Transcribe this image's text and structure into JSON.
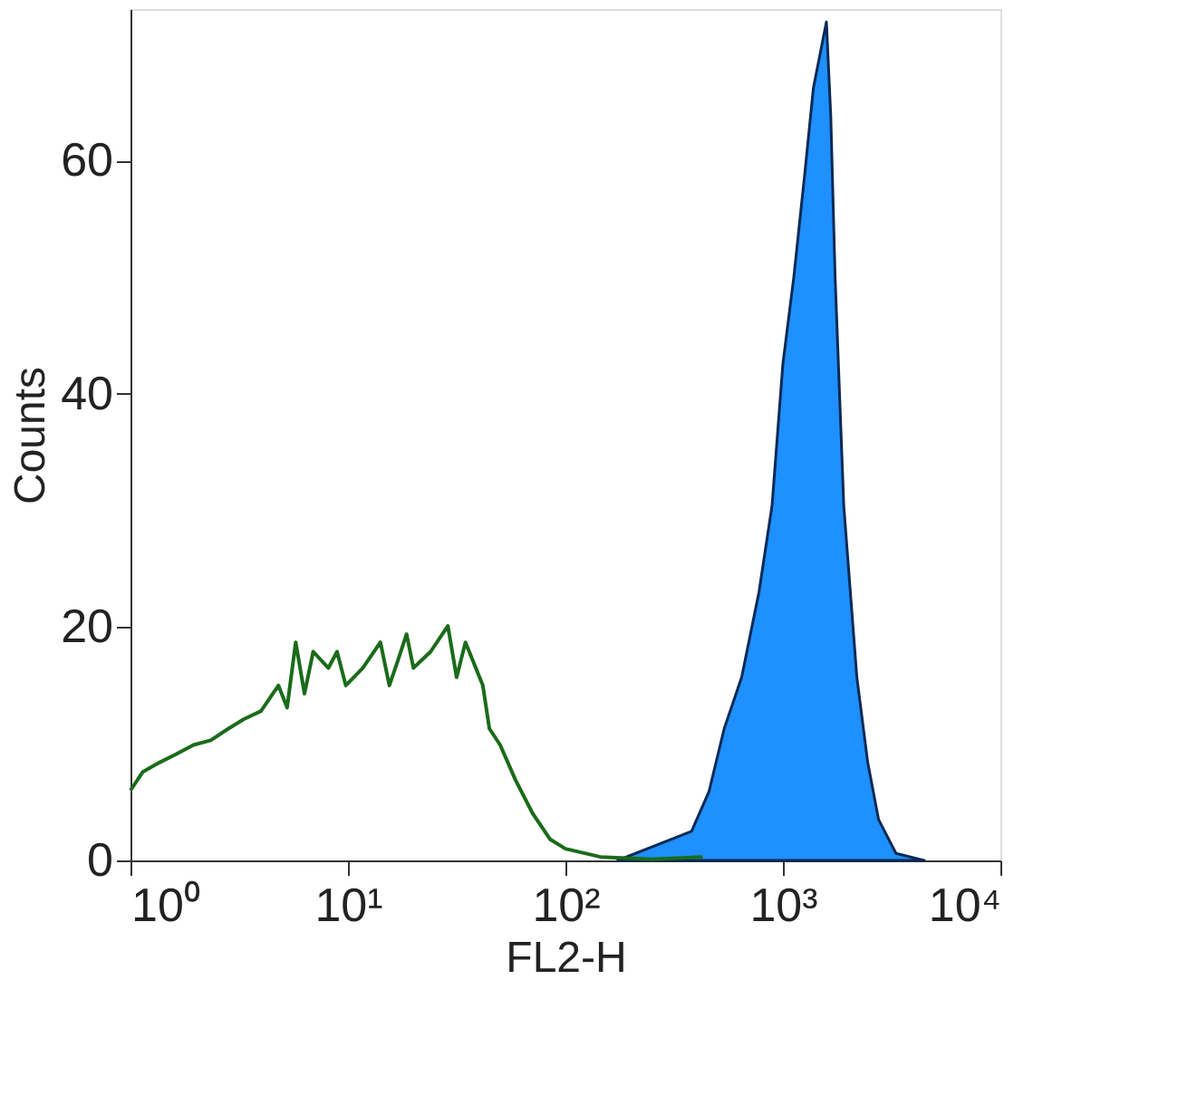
{
  "chart_data": {
    "type": "line",
    "xlabel": "FL2-H",
    "ylabel": "Counts",
    "log": "x",
    "grid": false,
    "xlim": [
      1,
      10000
    ],
    "ylim": [
      0,
      73
    ],
    "xticks": [
      {
        "value": 1,
        "label": "10⁰"
      },
      {
        "value": 10,
        "label": "10¹"
      },
      {
        "value": 100,
        "label": "10²"
      },
      {
        "value": 1000,
        "label": "10³"
      },
      {
        "value": 10000,
        "label": "10⁴"
      }
    ],
    "yticks": [
      0,
      20,
      40,
      60
    ],
    "series": [
      {
        "color": "#1a6b1a",
        "x": [
          1,
          1.14,
          1.36,
          1.62,
          1.95,
          2.34,
          2.82,
          3.31,
          3.98,
          4.79,
          5.25,
          5.75,
          6.31,
          6.92,
          8.13,
          8.91,
          9.77,
          11.7,
          14.1,
          15.5,
          17.0,
          18.6,
          20.0,
          24.0,
          28.8,
          31.6,
          34.7,
          41.7,
          44.7,
          50.1,
          58.9,
          70.8,
          85.1,
          100,
          145,
          251,
          427
        ],
        "values": [
          6.0,
          7.6,
          8.4,
          9.1,
          9.9,
          10.3,
          11.3,
          12.1,
          12.8,
          15,
          13.1,
          18.7,
          14.3,
          17.9,
          16.5,
          17.9,
          15,
          16.5,
          18.7,
          15,
          17.2,
          19.4,
          16.5,
          17.9,
          20.1,
          15.7,
          18.7,
          15,
          11.3,
          9.9,
          6.9,
          4.0,
          1.8,
          1.0,
          0.3,
          0.1,
          0.3
        ]
      },
      {
        "type": "area",
        "color": "#1e90ff",
        "x": [
          174,
          380,
          457,
          537,
          646,
          776,
          891,
          1000,
          1122,
          1259,
          1380,
          1585,
          1660,
          1738,
          1905,
          2188,
          2455,
          2754,
          3311,
          4467
        ],
        "values": [
          0,
          2.5,
          5.9,
          11.3,
          15.7,
          23,
          30.4,
          42.6,
          50,
          58.8,
          66.2,
          71.9,
          63.8,
          50,
          30.4,
          15.7,
          8.4,
          3.5,
          0.6,
          0
        ]
      }
    ]
  }
}
